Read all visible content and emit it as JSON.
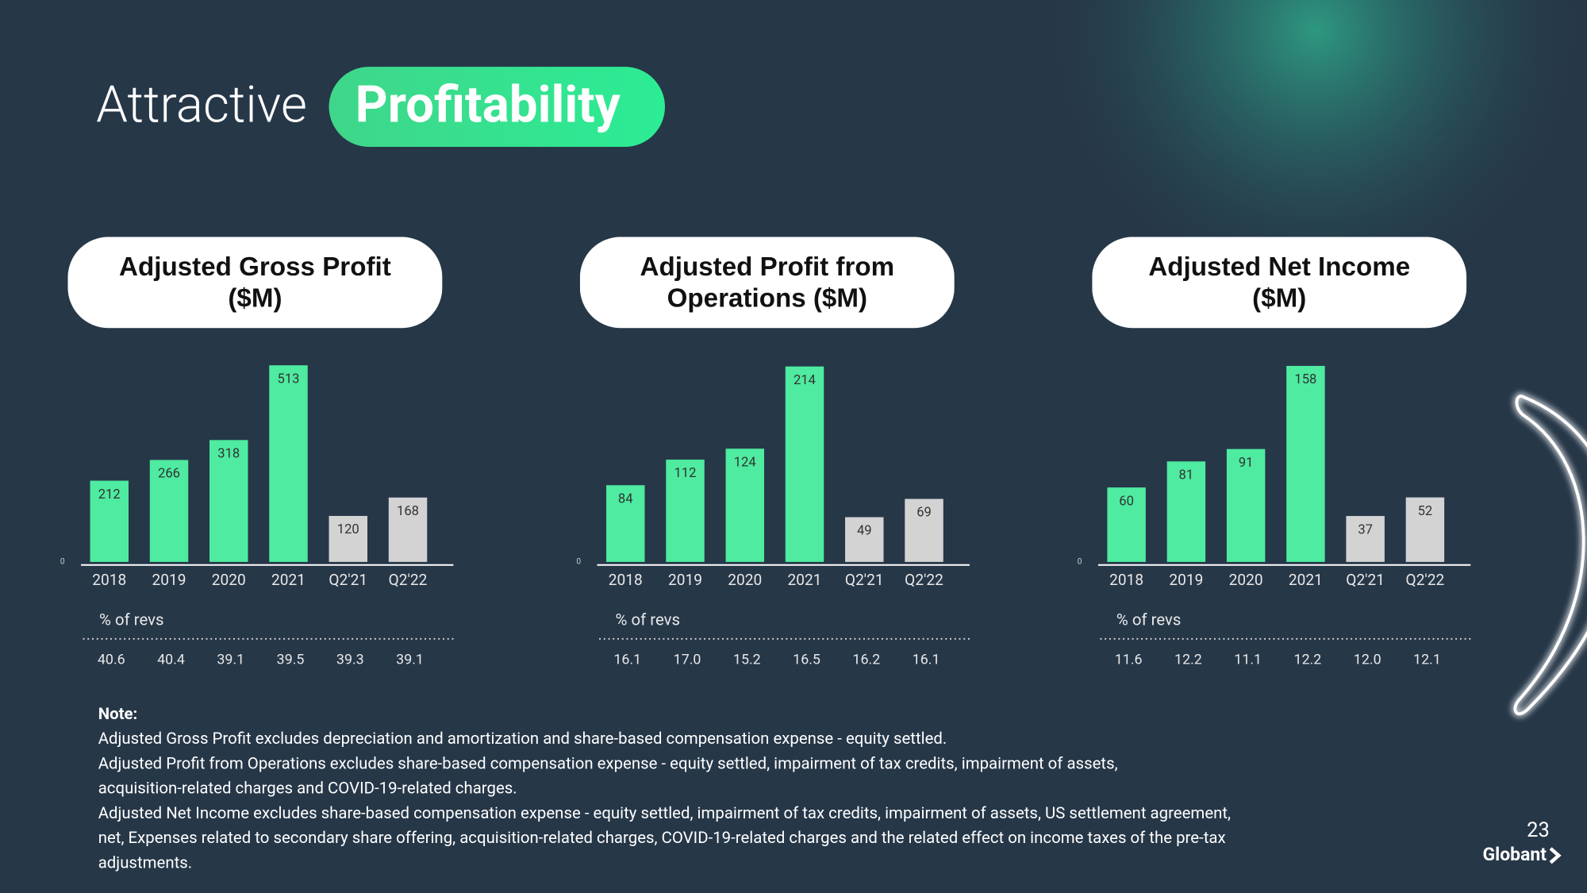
{
  "slide": {
    "title_plain": "Attractive",
    "title_highlight": "Profitability",
    "page_number": "23",
    "logo": "Globant"
  },
  "chart_data": [
    {
      "type": "bar",
      "title": "Adjusted Gross Profit ($M)",
      "categories": [
        "2018",
        "2019",
        "2020",
        "2021",
        "Q2'21",
        "Q2'22"
      ],
      "values": [
        212,
        266,
        318,
        513,
        120,
        168
      ],
      "colors": [
        "#4eeba0",
        "#4eeba0",
        "#4eeba0",
        "#4eeba0",
        "#d3d3d3",
        "#d3d3d3"
      ],
      "ylim": [
        0,
        560
      ],
      "yticks": [
        0
      ],
      "grid": false,
      "revenue_share": {
        "label": "% of revs",
        "values": [
          40.6,
          40.4,
          39.1,
          39.5,
          39.3,
          39.1
        ],
        "value_labels": [
          "40.6",
          "40.4",
          "39.1",
          "39.5",
          "39.3",
          "39.1"
        ]
      }
    },
    {
      "type": "bar",
      "title": "Adjusted Profit from Operations ($M)",
      "categories": [
        "2018",
        "2019",
        "2020",
        "2021",
        "Q2'21",
        "Q2'22"
      ],
      "values": [
        84,
        112,
        124,
        214,
        49,
        69
      ],
      "colors": [
        "#4eeba0",
        "#4eeba0",
        "#4eeba0",
        "#4eeba0",
        "#d3d3d3",
        "#d3d3d3"
      ],
      "ylim": [
        0,
        235
      ],
      "yticks": [
        0
      ],
      "grid": false,
      "revenue_share": {
        "label": "% of revs",
        "values": [
          16.1,
          17.0,
          15.2,
          16.5,
          16.2,
          16.1
        ],
        "value_labels": [
          "16.1",
          "17.0",
          "15.2",
          "16.5",
          "16.2",
          "16.1"
        ]
      }
    },
    {
      "type": "bar",
      "title": "Adjusted Net Income ($M)",
      "categories": [
        "2018",
        "2019",
        "2020",
        "2021",
        "Q2'21",
        "Q2'22"
      ],
      "values": [
        60,
        81,
        91,
        158,
        37,
        52
      ],
      "colors": [
        "#4eeba0",
        "#4eeba0",
        "#4eeba0",
        "#4eeba0",
        "#d3d3d3",
        "#d3d3d3"
      ],
      "ylim": [
        0,
        173
      ],
      "yticks": [
        0
      ],
      "grid": false,
      "revenue_share": {
        "label": "% of revs",
        "values": [
          11.6,
          12.2,
          11.1,
          12.2,
          12.0,
          12.1
        ],
        "value_labels": [
          "11.6",
          "12.2",
          "11.1",
          "12.2",
          "12.0",
          "12.1"
        ]
      }
    }
  ],
  "note": {
    "heading": "Note:",
    "lines": [
      "Adjusted Gross Profit excludes depreciation and amortization and share-based compensation expense - equity settled.",
      "Adjusted Profit from Operations excludes share-based compensation expense - equity settled, impairment of tax credits, impairment of assets,",
      "acquisition-related charges and COVID-19-related charges.",
      "Adjusted Net Income excludes share-based compensation expense - equity settled, impairment of tax credits, impairment of assets, US settlement agreement,",
      "net, Expenses related to secondary share offering, acquisition-related charges, COVID-19-related charges and the related effect on income taxes of the pre-tax",
      "adjustments."
    ]
  }
}
